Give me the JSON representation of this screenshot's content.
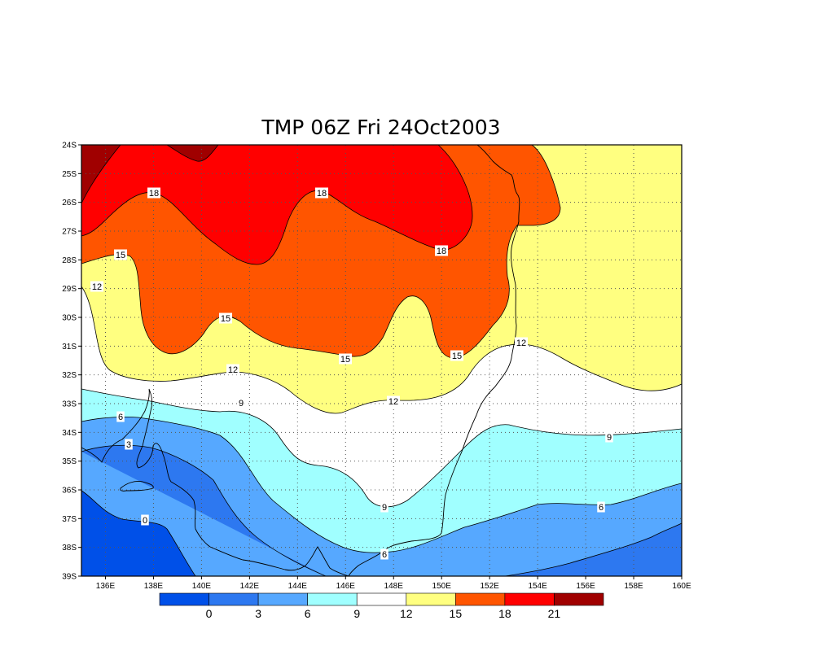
{
  "title": "TMP 06Z Fri 24Oct2003",
  "map": {
    "lat_labels": [
      "24S",
      "25S",
      "26S",
      "27S",
      "28S",
      "29S",
      "30S",
      "31S",
      "32S",
      "33S",
      "34S",
      "35S",
      "36S",
      "37S",
      "38S",
      "39S"
    ],
    "lon_labels": [
      "136E",
      "138E",
      "140E",
      "142E",
      "144E",
      "146E",
      "148E",
      "150E",
      "152E",
      "154E",
      "156E",
      "158E",
      "160E"
    ],
    "grid": "dotted",
    "bands": [
      {
        "range": "< 0",
        "color": "#0050e8"
      },
      {
        "range": "0-3",
        "color": "#2d78f0"
      },
      {
        "range": "3-6",
        "color": "#56a8ff"
      },
      {
        "range": "6-9",
        "color": "#a0ffff"
      },
      {
        "range": "9-12",
        "color": "#ffffff"
      },
      {
        "range": "12-15",
        "color": "#ffff80"
      },
      {
        "range": "15-18",
        "color": "#ff5500"
      },
      {
        "range": "18-21",
        "color": "#ff0000"
      },
      {
        "range": "> 21",
        "color": "#a00000"
      }
    ],
    "contour_labels": [
      {
        "text": "18",
        "id": "18-a"
      },
      {
        "text": "18",
        "id": "18-b"
      },
      {
        "text": "18",
        "id": "18-c"
      },
      {
        "text": "15",
        "id": "15-a"
      },
      {
        "text": "15",
        "id": "15-b"
      },
      {
        "text": "15",
        "id": "15-c"
      },
      {
        "text": "15",
        "id": "15-d"
      },
      {
        "text": "12",
        "id": "12-a"
      },
      {
        "text": "12",
        "id": "12-b"
      },
      {
        "text": "12",
        "id": "12-c"
      },
      {
        "text": "12",
        "id": "12-d"
      },
      {
        "text": "9",
        "id": "9-a"
      },
      {
        "text": "9",
        "id": "9-b"
      },
      {
        "text": "9",
        "id": "9-c"
      },
      {
        "text": "6",
        "id": "6-a"
      },
      {
        "text": "6",
        "id": "6-b"
      },
      {
        "text": "6",
        "id": "6-c"
      },
      {
        "text": "3",
        "id": "3-a"
      },
      {
        "text": "0",
        "id": "0-a"
      }
    ]
  },
  "colorbar": {
    "colors": [
      "#0050e8",
      "#2d78f0",
      "#56a8ff",
      "#a0ffff",
      "#ffffff",
      "#ffff80",
      "#ff5500",
      "#ff0000",
      "#a00000"
    ],
    "labels": [
      "0",
      "3",
      "6",
      "9",
      "12",
      "15",
      "18",
      "21"
    ]
  }
}
